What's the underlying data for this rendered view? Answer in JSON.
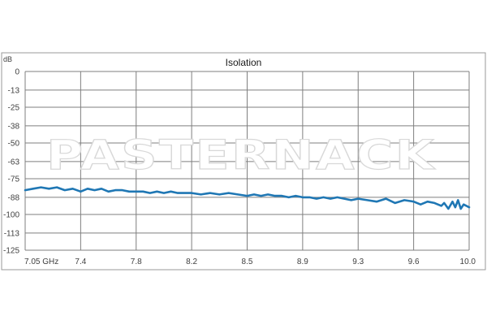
{
  "chart_data": {
    "type": "line",
    "title": "Isolation",
    "ylabel": "dB",
    "xlabel": "",
    "xlim": [
      7.05,
      10.0
    ],
    "ylim": [
      -125,
      0
    ],
    "x_ticks": [
      {
        "value": 7.05,
        "label": "7.05 GHz"
      },
      {
        "value": 7.4,
        "label": "7.4"
      },
      {
        "value": 7.8,
        "label": "7.8"
      },
      {
        "value": 8.2,
        "label": "8.2"
      },
      {
        "value": 8.5,
        "label": "8.5"
      },
      {
        "value": 8.9,
        "label": "8.9"
      },
      {
        "value": 9.3,
        "label": "9.3"
      },
      {
        "value": 9.6,
        "label": "9.6"
      },
      {
        "value": 10.0,
        "label": "10.0"
      }
    ],
    "y_ticks": [
      {
        "value": 0,
        "label": "0"
      },
      {
        "value": -13,
        "label": "-13"
      },
      {
        "value": -25,
        "label": "-25"
      },
      {
        "value": -38,
        "label": "-38"
      },
      {
        "value": -50,
        "label": "-50"
      },
      {
        "value": -63,
        "label": "-63"
      },
      {
        "value": -75,
        "label": "-75"
      },
      {
        "value": -88,
        "label": "-88"
      },
      {
        "value": -100,
        "label": "-100"
      },
      {
        "value": -113,
        "label": "-113"
      },
      {
        "value": -125,
        "label": "-125"
      }
    ],
    "grid": true,
    "legend": "none",
    "watermark": "PASTERNACK",
    "series": [
      {
        "color": "#1f77b4",
        "x": [
          7.05,
          7.1,
          7.15,
          7.2,
          7.25,
          7.3,
          7.35,
          7.4,
          7.45,
          7.5,
          7.55,
          7.6,
          7.65,
          7.7,
          7.75,
          7.8,
          7.85,
          7.9,
          7.95,
          8.0,
          8.05,
          8.1,
          8.15,
          8.2,
          8.25,
          8.3,
          8.35,
          8.4,
          8.45,
          8.5,
          8.55,
          8.6,
          8.65,
          8.7,
          8.75,
          8.8,
          8.85,
          8.9,
          8.95,
          9.0,
          9.05,
          9.1,
          9.15,
          9.2,
          9.25,
          9.3,
          9.35,
          9.4,
          9.45,
          9.5,
          9.55,
          9.6,
          9.65,
          9.7,
          9.75,
          9.8,
          9.82,
          9.85,
          9.88,
          9.9,
          9.92,
          9.94,
          9.96,
          9.98,
          10.0
        ],
        "y": [
          -83,
          -82,
          -81,
          -82,
          -81,
          -83,
          -82,
          -84,
          -82,
          -83,
          -82,
          -84,
          -83,
          -83,
          -84,
          -84,
          -84,
          -85,
          -84,
          -85,
          -84,
          -85,
          -85,
          -85,
          -86,
          -85,
          -86,
          -85,
          -86,
          -87,
          -86,
          -87,
          -86,
          -87,
          -87,
          -88,
          -87,
          -88,
          -88,
          -89,
          -88,
          -89,
          -88,
          -89,
          -90,
          -89,
          -90,
          -91,
          -89,
          -92,
          -90,
          -91,
          -93,
          -91,
          -92,
          -94,
          -92,
          -96,
          -91,
          -95,
          -90,
          -96,
          -93,
          -94,
          -95
        ]
      }
    ]
  }
}
